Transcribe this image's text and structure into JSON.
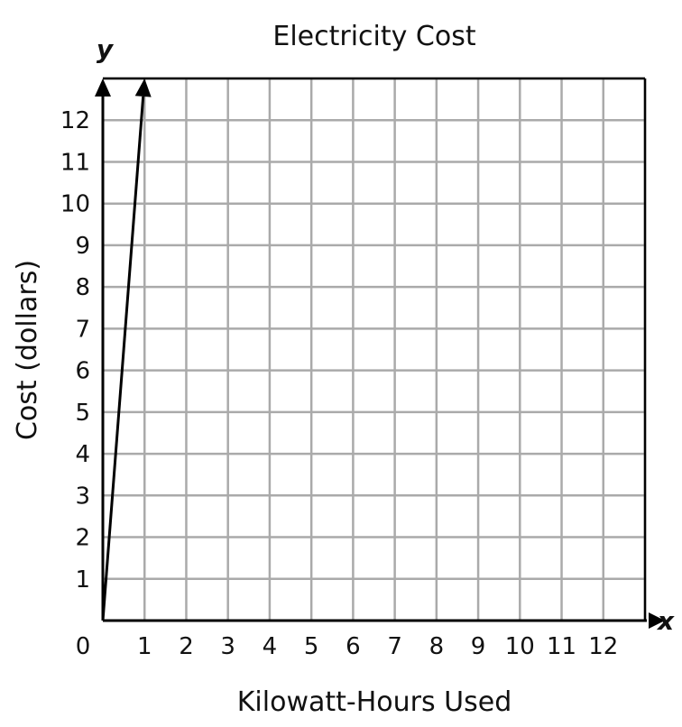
{
  "chart_data": {
    "type": "line",
    "title": "Electricity Cost",
    "xlabel": "Kilowatt-Hours Used",
    "ylabel": "Cost (dollars)",
    "x_axis_variable": "x",
    "y_axis_variable": "y",
    "xlim": [
      0,
      13
    ],
    "ylim": [
      0,
      13
    ],
    "x_ticks": [
      "0",
      "1",
      "2",
      "3",
      "4",
      "5",
      "6",
      "7",
      "8",
      "9",
      "10",
      "11",
      "12"
    ],
    "y_ticks": [
      "1",
      "2",
      "3",
      "4",
      "5",
      "6",
      "7",
      "8",
      "9",
      "10",
      "11",
      "12"
    ],
    "grid": true,
    "series": [
      {
        "x": [
          0,
          1
        ],
        "y": [
          0,
          13
        ]
      }
    ],
    "colors": {
      "grid": "#aaaaaa",
      "axis": "#000000",
      "line": "#000000"
    }
  }
}
